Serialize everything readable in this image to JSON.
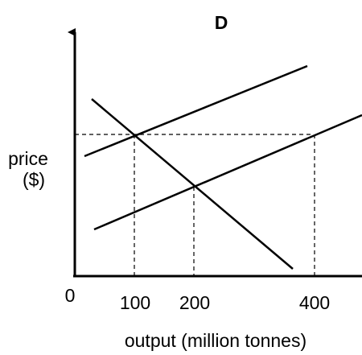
{
  "title": "D",
  "y_axis_label": {
    "line1": "price",
    "line2": "($)"
  },
  "x_axis_label": "output (million tonnes)",
  "ticks": {
    "origin": "0",
    "x100": "100",
    "x200": "200",
    "x400": "400"
  },
  "colors": {
    "line": "#000000",
    "background": "#ffffff"
  }
}
